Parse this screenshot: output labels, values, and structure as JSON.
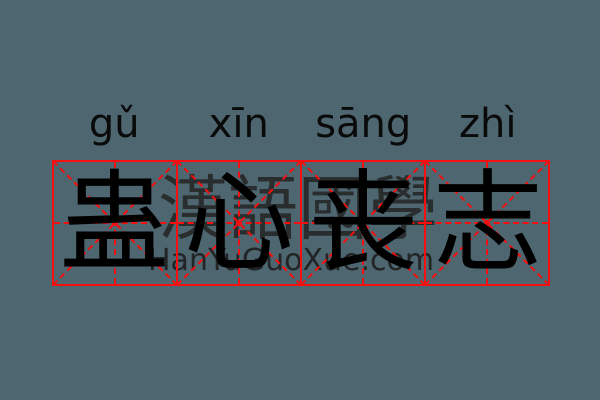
{
  "card": {
    "pinyin": [
      "gǔ",
      "xīn",
      "sāng",
      "zhì"
    ],
    "characters": [
      "蛊",
      "心",
      "丧",
      "志"
    ],
    "watermark": {
      "cjk_text": "漢語國學",
      "url_text": "HanYuGuoXue.com"
    },
    "colors": {
      "background": "#4d6670",
      "grid_red": "#f50f0f",
      "character_black": "#000000",
      "watermark_dark": "#262626"
    }
  }
}
